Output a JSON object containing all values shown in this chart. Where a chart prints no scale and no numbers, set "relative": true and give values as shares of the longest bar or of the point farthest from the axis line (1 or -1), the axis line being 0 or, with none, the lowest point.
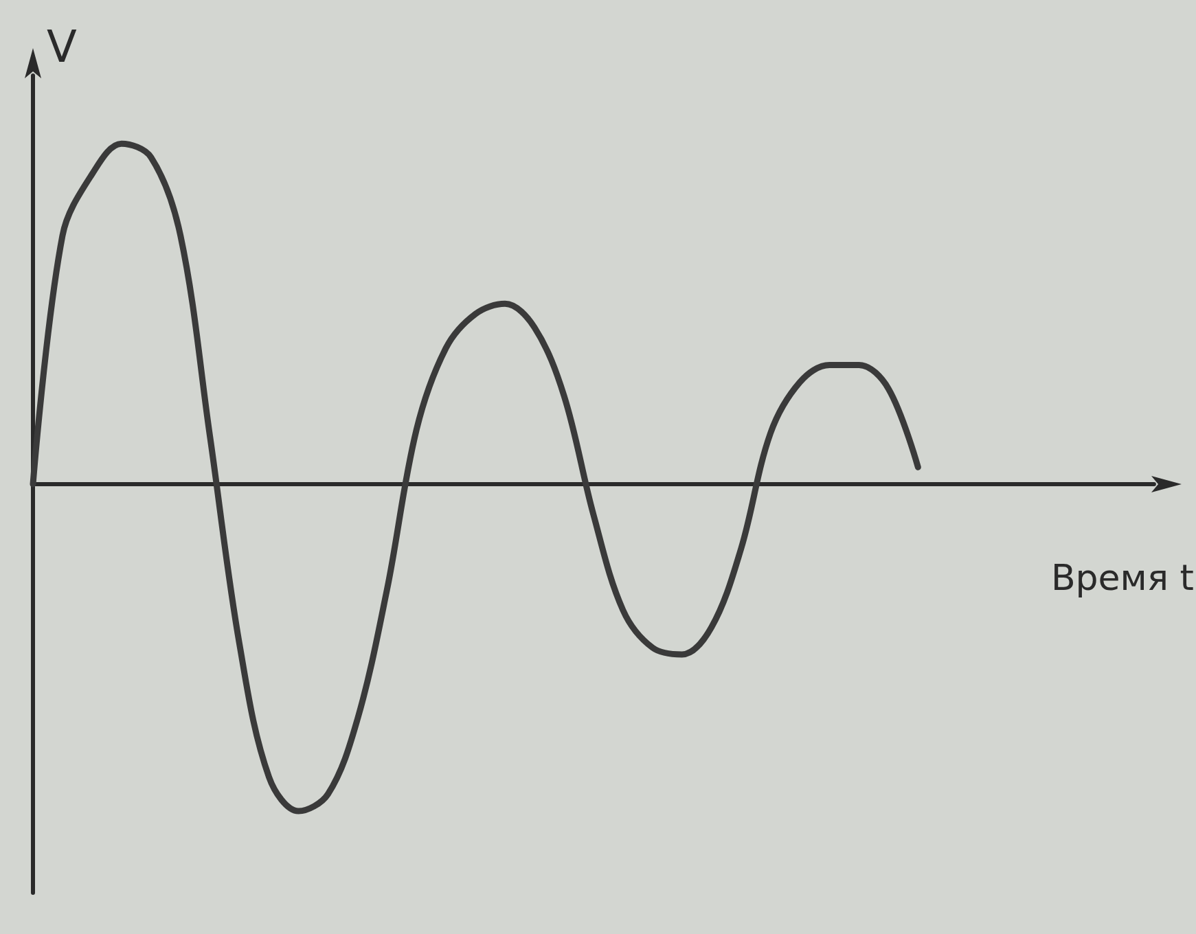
{
  "chart_data": {
    "type": "line",
    "xlabel": "Время t",
    "ylabel": "V",
    "relative": true,
    "grid": false,
    "line_style": "solid",
    "categories": [
      null,
      null,
      null,
      null,
      null,
      null,
      null,
      null,
      null,
      null,
      null,
      null,
      null,
      null,
      null,
      null,
      null,
      null,
      null,
      null,
      null,
      null,
      null,
      null,
      null,
      null,
      null,
      null,
      null,
      null,
      null,
      null,
      null,
      null,
      null,
      null,
      null,
      null,
      null
    ],
    "series": [
      {
        "color": "#3a3a3a",
        "values": [
          0,
          0.73,
          0.91,
          1,
          0.96,
          0.73,
          0.14,
          -0.47,
          -0.86,
          -0.96,
          -0.91,
          -0.69,
          -0.31,
          0.16,
          0.4,
          0.5,
          0.53,
          0.46,
          0.26,
          -0.09,
          -0.37,
          -0.48,
          -0.5,
          -0.42,
          -0.19,
          0.15,
          0.3,
          0.35,
          0.35,
          0.28,
          0.05,
          null,
          null,
          null,
          null,
          null,
          null,
          null,
          null
        ]
      }
    ]
  }
}
